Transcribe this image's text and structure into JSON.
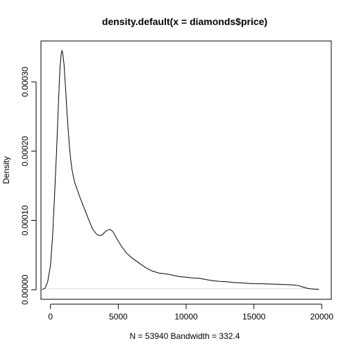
{
  "chart_data": {
    "type": "line",
    "title": "density.default(x = diamonds$price)",
    "xlabel": "N = 53940   Bandwidth = 332.4",
    "ylabel": "Density",
    "xlim": [
      -700,
      20700
    ],
    "ylim": [
      -1.38e-05,
      0.000359
    ],
    "x_ticks": [
      0,
      5000,
      10000,
      15000,
      20000
    ],
    "x_tick_labels": [
      "0",
      "5000",
      "10000",
      "15000",
      "20000"
    ],
    "y_ticks": [
      0,
      0.0001,
      0.0002,
      0.0003
    ],
    "y_tick_labels": [
      "0.00000",
      "0.00010",
      "0.00020",
      "0.00030"
    ],
    "grid": false,
    "legend": "none",
    "series": [
      {
        "x": [
          -630,
          -400,
          -200,
          0,
          150,
          300,
          450,
          600,
          700,
          800,
          850,
          900,
          1000,
          1100,
          1200,
          1300,
          1400,
          1500,
          1600,
          1700,
          1800,
          2000,
          2200,
          2500,
          2800,
          3100,
          3400,
          3600,
          3800,
          4000,
          4200,
          4400,
          4600,
          4800,
          5000,
          5300,
          5600,
          6000,
          6500,
          7000,
          7500,
          8000,
          8500,
          9000,
          9500,
          10000,
          10500,
          11000,
          11500,
          12000,
          12500,
          13000,
          13500,
          14000,
          14500,
          15000,
          15500,
          16000,
          16500,
          17000,
          17500,
          18000,
          18300,
          18600,
          18900,
          19200,
          19500,
          19800
        ],
        "y": [
          2e-07,
          2e-06,
          1.2e-05,
          3.5e-05,
          7.5e-05,
          0.000135,
          0.0002,
          0.000275,
          0.00032,
          0.000342,
          0.000345,
          0.000342,
          0.000325,
          0.000295,
          0.000262,
          0.000232,
          0.000206,
          0.000186,
          0.000172,
          0.000162,
          0.000154,
          0.000143,
          0.000132,
          0.000117,
          0.000102,
          8.8e-05,
          8e-05,
          7.8e-05,
          7.9e-05,
          8.3e-05,
          8.6e-05,
          8.7e-05,
          8.4e-05,
          7.7e-05,
          7e-05,
          6.1e-05,
          5.3e-05,
          4.6e-05,
          3.9e-05,
          3.2e-05,
          2.7e-05,
          2.4e-05,
          2.3e-05,
          2.1e-05,
          1.9e-05,
          1.8e-05,
          1.7e-05,
          1.65e-05,
          1.45e-05,
          1.3e-05,
          1.2e-05,
          1.15e-05,
          1.05e-05,
          1e-05,
          9.3e-06,
          8.8e-06,
          8.6e-06,
          8.4e-06,
          8.1e-06,
          7.8e-06,
          7.4e-06,
          6.8e-06,
          5.8e-06,
          4e-06,
          2.2e-06,
          1.2e-06,
          8e-07,
          6e-07
        ]
      }
    ]
  }
}
